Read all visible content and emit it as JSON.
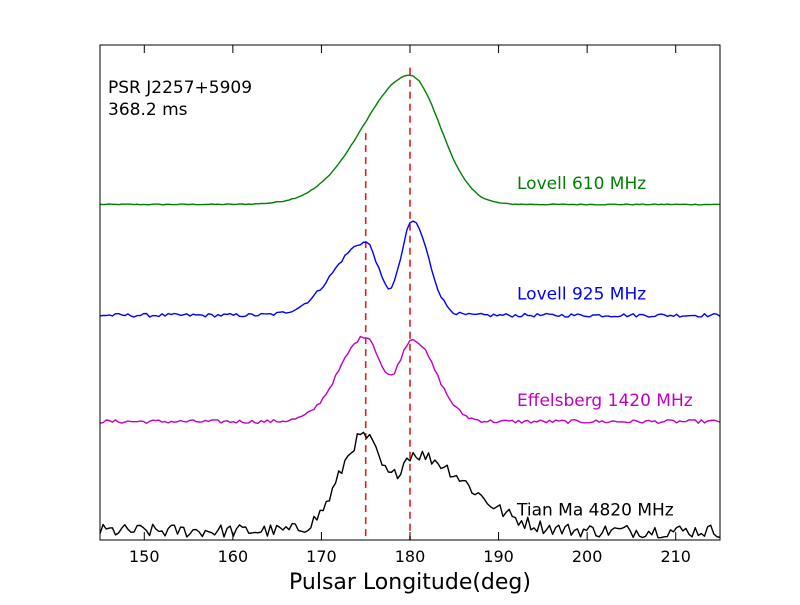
{
  "chart_data": {
    "type": "line",
    "title": "",
    "xlabel": "Pulsar Longitude(deg)",
    "ylabel": "",
    "xlim": [
      145,
      215
    ],
    "xticks": [
      150,
      160,
      170,
      180,
      190,
      200,
      210
    ],
    "xtick_labels": [
      "150",
      "160",
      "170",
      "180",
      "190",
      "200",
      "210"
    ],
    "grid": false,
    "legend": "none",
    "annotation": {
      "line1": "PSR J2257+5909",
      "line2": "368.2 ms",
      "position": "top-left"
    },
    "reference_lines": [
      {
        "x": 175,
        "color": "#dd2020",
        "style": "dashed",
        "top": 2.62
      },
      {
        "x": 180,
        "color": "#dd2020",
        "style": "dashed",
        "top": 3.05
      }
    ],
    "series": [
      {
        "name": "Lovell 610 MHz",
        "color": "#008000",
        "offset": 2.15,
        "noise": 0.003,
        "components": [
          {
            "center": 180,
            "amp": 0.85,
            "sigma_left": 5.3,
            "sigma_right": 3.4
          }
        ]
      },
      {
        "name": "Lovell 925 MHz",
        "color": "#0000ff",
        "offset": 1.42,
        "noise": 0.012,
        "components": [
          {
            "center": 175,
            "amp": 0.48,
            "sigma_left": 3.6,
            "sigma_right": 1.5
          },
          {
            "center": 180.3,
            "amp": 0.62,
            "sigma_left": 1.3,
            "sigma_right": 1.8
          }
        ]
      },
      {
        "name": "Effelsberg 1420 MHz",
        "color": "#c000c0",
        "offset": 0.72,
        "noise": 0.012,
        "components": [
          {
            "center": 175,
            "amp": 0.56,
            "sigma_left": 3.0,
            "sigma_right": 1.7
          },
          {
            "center": 180.3,
            "amp": 0.54,
            "sigma_left": 1.6,
            "sigma_right": 2.6
          }
        ]
      },
      {
        "name": "Tian Ma 4820 MHz",
        "color": "#000000",
        "offset": 0.0,
        "noise": 0.045,
        "components": [
          {
            "center": 174.8,
            "amp": 0.62,
            "sigma_left": 2.7,
            "sigma_right": 2.0
          },
          {
            "center": 180.5,
            "amp": 0.5,
            "sigma_left": 1.8,
            "sigma_right": 6.0
          }
        ]
      }
    ]
  }
}
